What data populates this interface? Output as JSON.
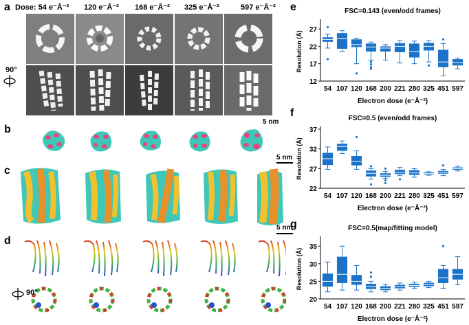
{
  "panels": {
    "a": {
      "letter": "a",
      "doses": [
        "Dose: 54 e⁻Å⁻²",
        "120 e⁻Å⁻²",
        "168 e⁻Å⁻²",
        "325 e⁻Å⁻²",
        "597 e⁻Å⁻²"
      ],
      "rotation_label": "90°",
      "scalebar": "5 nm"
    },
    "b": {
      "letter": "b",
      "scalebar": "5 nm"
    },
    "c": {
      "letter": "c",
      "scalebar": "5 nm"
    },
    "d": {
      "letter": "d",
      "rotation_label": "90°"
    },
    "e": {
      "letter": "e"
    },
    "f": {
      "letter": "f"
    },
    "g": {
      "letter": "g"
    }
  },
  "colors": {
    "box": "#1a73c9",
    "surface_teal": "#3fc7b8",
    "surface_yellow": "#f2c12e",
    "surface_orange": "#e8902a",
    "surface_pink": "#e8457f"
  },
  "chart_data": [
    {
      "type": "box",
      "panel": "e",
      "title": "FSC=0.143 (even/odd frames)",
      "xlabel": "Electron dose (e⁻Å⁻²)",
      "ylabel": "Resolution (Å)",
      "categories": [
        "54",
        "107",
        "120",
        "168",
        "200",
        "221",
        "280",
        "325",
        "451",
        "597"
      ],
      "yticks": [
        12,
        17,
        22,
        27
      ],
      "ylim": [
        12,
        29
      ],
      "boxes": [
        {
          "min": 21.5,
          "q1": 23.3,
          "median": 24.0,
          "q3": 24.6,
          "max": 25.5,
          "outliers": [
            27.5,
            18.3
          ]
        },
        {
          "min": 20.5,
          "q1": 21.3,
          "median": 24.2,
          "q3": 25.8,
          "max": 26.5,
          "outliers": []
        },
        {
          "min": 17.0,
          "q1": 21.8,
          "median": 22.5,
          "q3": 24.0,
          "max": 24.3,
          "outliers": [
            14.2
          ]
        },
        {
          "min": 18.0,
          "q1": 20.5,
          "median": 21.8,
          "q3": 22.8,
          "max": 23.2,
          "outliers": [
            17.5,
            16.8,
            16.0,
            15.5
          ]
        },
        {
          "min": 18.0,
          "q1": 20.5,
          "median": 21.5,
          "q3": 22.0,
          "max": 22.5,
          "outliers": []
        },
        {
          "min": 17.2,
          "q1": 20.3,
          "median": 22.0,
          "q3": 22.9,
          "max": 23.6,
          "outliers": []
        },
        {
          "min": 17.0,
          "q1": 18.8,
          "median": 20.5,
          "q3": 22.8,
          "max": 23.5,
          "outliers": []
        },
        {
          "min": 17.5,
          "q1": 20.8,
          "median": 22.0,
          "q3": 23.0,
          "max": 23.6,
          "outliers": [
            16.5
          ]
        },
        {
          "min": 13.5,
          "q1": 16.0,
          "median": 17.5,
          "q3": 21.0,
          "max": 22.8,
          "outliers": [
            24.0
          ]
        },
        {
          "min": 15.5,
          "q1": 16.5,
          "median": 17.3,
          "q3": 18.3,
          "max": 18.6,
          "outliers": []
        }
      ]
    },
    {
      "type": "box",
      "panel": "f",
      "title": "FSC=0.5 (even/odd frames)",
      "xlabel": "Electron dose (e⁻Å⁻²)",
      "ylabel": "Resolution (Å)",
      "categories": [
        "54",
        "107",
        "120",
        "168",
        "200",
        "221",
        "280",
        "325",
        "451",
        "597"
      ],
      "yticks": [
        22,
        27,
        32,
        37
      ],
      "ylim": [
        22,
        37
      ],
      "boxes": [
        {
          "min": 26.8,
          "q1": 27.9,
          "median": 29.5,
          "q3": 31.0,
          "max": 32.5,
          "outliers": []
        },
        {
          "min": 30.8,
          "q1": 31.5,
          "median": 32.6,
          "q3": 33.3,
          "max": 34.0,
          "outliers": []
        },
        {
          "min": 26.8,
          "q1": 27.8,
          "median": 28.8,
          "q3": 30.2,
          "max": 31.5,
          "outliers": [
            35.0
          ]
        },
        {
          "min": 24.3,
          "q1": 25.0,
          "median": 25.8,
          "q3": 26.5,
          "max": 27.0,
          "outliers": [
            27.6,
            23.0
          ]
        },
        {
          "min": 24.5,
          "q1": 24.9,
          "median": 25.3,
          "q3": 25.8,
          "max": 26.3,
          "outliers": [
            27.0,
            24.0,
            23.3
          ]
        },
        {
          "min": 25.2,
          "q1": 25.6,
          "median": 26.0,
          "q3": 26.7,
          "max": 27.3,
          "outliers": [
            24.3
          ]
        },
        {
          "min": 24.8,
          "q1": 25.4,
          "median": 25.9,
          "q3": 26.6,
          "max": 27.0,
          "outliers": []
        },
        {
          "min": 25.3,
          "q1": 25.5,
          "median": 25.7,
          "q3": 26.0,
          "max": 26.2,
          "outliers": []
        },
        {
          "min": 25.2,
          "q1": 25.7,
          "median": 26.0,
          "q3": 26.4,
          "max": 26.8,
          "outliers": [
            27.8
          ]
        },
        {
          "min": 26.4,
          "q1": 26.7,
          "median": 27.0,
          "q3": 27.3,
          "max": 27.6,
          "outliers": []
        }
      ]
    },
    {
      "type": "box",
      "panel": "g",
      "title": "FSC=0.5(map/fitting model)",
      "xlabel": "Electron dose (e⁻Å⁻²)",
      "ylabel": "Resolution (Å)",
      "categories": [
        "54",
        "107",
        "120",
        "168",
        "200",
        "221",
        "280",
        "325",
        "451",
        "597"
      ],
      "yticks": [
        20,
        25,
        30,
        35
      ],
      "ylim": [
        20,
        37
      ],
      "boxes": [
        {
          "min": 22.0,
          "q1": 23.5,
          "median": 25.0,
          "q3": 27.2,
          "max": 30.5,
          "outliers": []
        },
        {
          "min": 22.5,
          "q1": 24.5,
          "median": 27.0,
          "q3": 32.0,
          "max": 35.0,
          "outliers": []
        },
        {
          "min": 22.5,
          "q1": 24.0,
          "median": 25.0,
          "q3": 26.8,
          "max": 29.5,
          "outliers": []
        },
        {
          "min": 22.0,
          "q1": 22.8,
          "median": 23.5,
          "q3": 24.3,
          "max": 25.0,
          "outliers": [
            26.3,
            27.5
          ]
        },
        {
          "min": 22.0,
          "q1": 22.5,
          "median": 23.0,
          "q3": 23.6,
          "max": 24.2,
          "outliers": []
        },
        {
          "min": 22.5,
          "q1": 23.0,
          "median": 23.5,
          "q3": 24.0,
          "max": 24.5,
          "outliers": []
        },
        {
          "min": 23.0,
          "q1": 23.4,
          "median": 23.8,
          "q3": 24.3,
          "max": 24.8,
          "outliers": []
        },
        {
          "min": 23.2,
          "q1": 23.6,
          "median": 24.0,
          "q3": 24.6,
          "max": 25.0,
          "outliers": []
        },
        {
          "min": 23.0,
          "q1": 24.5,
          "median": 26.0,
          "q3": 28.5,
          "max": 29.5,
          "outliers": [
            35.0
          ]
        },
        {
          "min": 24.0,
          "q1": 25.5,
          "median": 27.0,
          "q3": 28.5,
          "max": 32.0,
          "outliers": []
        }
      ]
    }
  ]
}
